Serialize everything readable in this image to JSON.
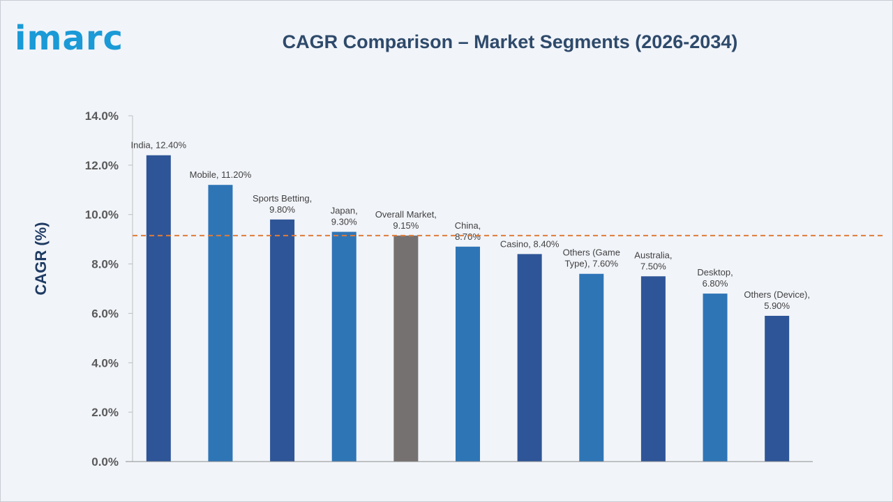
{
  "brand": {
    "logo_text": "imarc",
    "logo_color": "#1a9ad6"
  },
  "chart_data": {
    "type": "bar",
    "title": "CAGR Comparison – Market Segments (2026-2034)",
    "ylabel": "CAGR (%)",
    "xlabel": "",
    "ylim": [
      0,
      14
    ],
    "yticks": [
      "0.0%",
      "2.0%",
      "4.0%",
      "6.0%",
      "8.0%",
      "10.0%",
      "12.0%",
      "14.0%"
    ],
    "grid": false,
    "reference_line": {
      "value": 9.15,
      "style": "dashed",
      "color": "#e07b39"
    },
    "bars": [
      {
        "category": "India",
        "value": 12.4,
        "label": [
          "India, 12.40%"
        ],
        "color": "#2e5597"
      },
      {
        "category": "Mobile",
        "value": 11.2,
        "label": [
          "Mobile, 11.20%"
        ],
        "color": "#2e75b6"
      },
      {
        "category": "Sports Betting",
        "value": 9.8,
        "label": [
          "Sports Betting,",
          "9.80%"
        ],
        "color": "#2e5597"
      },
      {
        "category": "Japan",
        "value": 9.3,
        "label": [
          "Japan,",
          "9.30%"
        ],
        "color": "#2e75b6"
      },
      {
        "category": "Overall Market",
        "value": 9.15,
        "label": [
          "Overall Market,",
          "9.15%"
        ],
        "color": "#767171"
      },
      {
        "category": "China",
        "value": 8.7,
        "label": [
          "China,",
          "8.70%"
        ],
        "color": "#2e75b6"
      },
      {
        "category": "Casino",
        "value": 8.4,
        "label": [
          "Casino, 8.40%"
        ],
        "color": "#2e5597"
      },
      {
        "category": "Others (Game Type)",
        "value": 7.6,
        "label": [
          "Others (Game",
          "Type), 7.60%"
        ],
        "color": "#2e75b6"
      },
      {
        "category": "Australia",
        "value": 7.5,
        "label": [
          "Australia,",
          "7.50%"
        ],
        "color": "#2e5597"
      },
      {
        "category": "Desktop",
        "value": 6.8,
        "label": [
          "Desktop,",
          "6.80%"
        ],
        "color": "#2e75b6"
      },
      {
        "category": "Others (Device)",
        "value": 5.9,
        "label": [
          "Others (Device),",
          "5.90%"
        ],
        "color": "#2e5597"
      }
    ]
  }
}
